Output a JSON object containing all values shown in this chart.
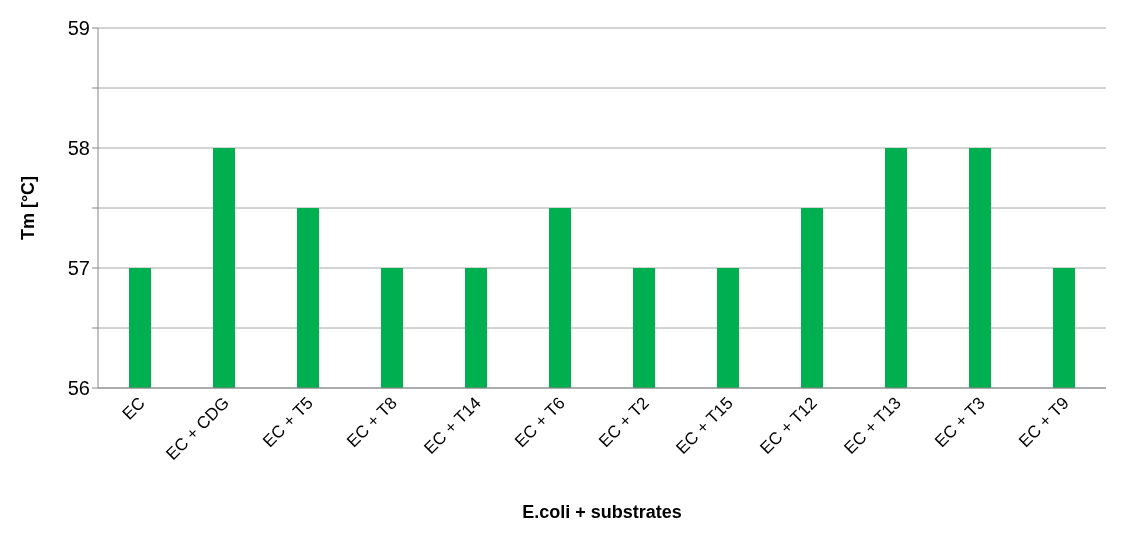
{
  "chart_data": {
    "type": "bar",
    "ylabel": "Tm [°C]",
    "xlabel": "E.coli + substrates",
    "categories": [
      "EC",
      "EC + CDG",
      "EC + T5",
      "EC + T8",
      "EC + T14",
      "EC + T6",
      "EC + T2",
      "EC + T15",
      "EC + T12",
      "EC + T13",
      "EC + T3",
      "EC + T9"
    ],
    "values": [
      57,
      58,
      57.5,
      57,
      57,
      57.5,
      57,
      57,
      57.5,
      58,
      58,
      57
    ],
    "color": "#00b050",
    "ylim": [
      56,
      59
    ],
    "yticks": [
      56,
      {
        "value": 56.5,
        "label": null
      },
      57,
      {
        "value": 57.5,
        "label": null
      },
      58,
      {
        "value": 58.5,
        "label": null
      },
      59
    ],
    "grid": "y",
    "legend": false
  }
}
